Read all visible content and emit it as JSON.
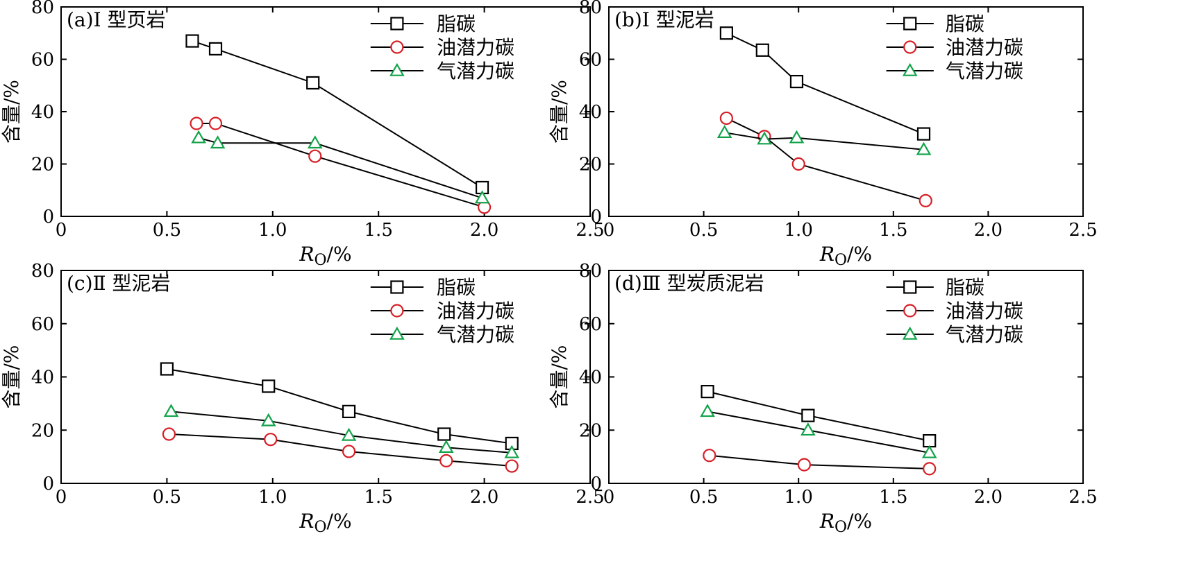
{
  "chart_data": [
    {
      "type": "line",
      "title": "(a)Ⅰ 型页岩",
      "xlabel_main": "R",
      "xlabel_sub": "O",
      "xlabel_unit": "/%",
      "ylabel": "含量/%",
      "xlim": [
        0,
        2.5
      ],
      "ylim": [
        0,
        80
      ],
      "xticks": [
        "0",
        "0.5",
        "1.0",
        "1.5",
        "2.0",
        "2.5"
      ],
      "yticks": [
        "0",
        "20",
        "40",
        "60",
        "80"
      ],
      "legend_position": "top-right",
      "series": [
        {
          "name": "脂碳",
          "marker": "square",
          "x": [
            0.62,
            0.73,
            1.19,
            1.99
          ],
          "y": [
            67,
            64,
            51,
            11
          ]
        },
        {
          "name": "油潜力碳",
          "marker": "circle",
          "x": [
            0.64,
            0.73,
            1.2,
            2.0
          ],
          "y": [
            35.5,
            35.5,
            23,
            3.5
          ]
        },
        {
          "name": "气潜力碳",
          "marker": "triangle",
          "x": [
            0.65,
            0.74,
            1.2,
            1.99
          ],
          "y": [
            30,
            28,
            28,
            7
          ]
        }
      ]
    },
    {
      "type": "line",
      "title": "(b)Ⅰ 型泥岩",
      "xlabel_main": "R",
      "xlabel_sub": "O",
      "xlabel_unit": "/%",
      "ylabel": "含量/%",
      "xlim": [
        0,
        2.5
      ],
      "ylim": [
        0,
        80
      ],
      "xticks": [
        "0",
        "0.5",
        "1.0",
        "1.5",
        "2.0",
        "2.5"
      ],
      "yticks": [
        "0",
        "20",
        "40",
        "60",
        "80"
      ],
      "legend_position": "top-right",
      "series": [
        {
          "name": "脂碳",
          "marker": "square",
          "x": [
            0.62,
            0.81,
            0.99,
            1.66
          ],
          "y": [
            70,
            63.5,
            51.5,
            31.5
          ]
        },
        {
          "name": "油潜力碳",
          "marker": "circle",
          "x": [
            0.62,
            0.82,
            1.0,
            1.67
          ],
          "y": [
            37.5,
            30.5,
            20,
            6
          ]
        },
        {
          "name": "气潜力碳",
          "marker": "triangle",
          "x": [
            0.61,
            0.82,
            0.99,
            1.66
          ],
          "y": [
            32,
            29.5,
            30,
            25.5
          ]
        }
      ]
    },
    {
      "type": "line",
      "title": "(c)Ⅱ 型泥岩",
      "xlabel_main": "R",
      "xlabel_sub": "O",
      "xlabel_unit": "/%",
      "ylabel": "含量/%",
      "xlim": [
        0,
        2.5
      ],
      "ylim": [
        0,
        80
      ],
      "xticks": [
        "0",
        "0.5",
        "1.0",
        "1.5",
        "2.0",
        "2.5"
      ],
      "yticks": [
        "0",
        "20",
        "40",
        "60",
        "80"
      ],
      "legend_position": "top-right",
      "series": [
        {
          "name": "脂碳",
          "marker": "square",
          "x": [
            0.5,
            0.98,
            1.36,
            1.81,
            2.13
          ],
          "y": [
            43,
            36.5,
            27,
            18.5,
            15
          ]
        },
        {
          "name": "油潜力碳",
          "marker": "circle",
          "x": [
            0.51,
            0.99,
            1.36,
            1.82,
            2.13
          ],
          "y": [
            18.5,
            16.5,
            12,
            8.5,
            6.5
          ]
        },
        {
          "name": "气潜力碳",
          "marker": "triangle",
          "x": [
            0.52,
            0.98,
            1.36,
            1.82,
            2.13
          ],
          "y": [
            27,
            23.5,
            18,
            13.5,
            11.5
          ]
        }
      ]
    },
    {
      "type": "line",
      "title": "(d)Ⅲ 型炭质泥岩",
      "xlabel_main": "R",
      "xlabel_sub": "O",
      "xlabel_unit": "/%",
      "ylabel": "含量/%",
      "xlim": [
        0,
        2.5
      ],
      "ylim": [
        0,
        80
      ],
      "xticks": [
        "0",
        "0.5",
        "1.0",
        "1.5",
        "2.0",
        "2.5"
      ],
      "yticks": [
        "0",
        "20",
        "40",
        "60",
        "80"
      ],
      "legend_position": "top-right",
      "series": [
        {
          "name": "脂碳",
          "marker": "square",
          "x": [
            0.52,
            1.05,
            1.69
          ],
          "y": [
            34.5,
            25.5,
            16
          ]
        },
        {
          "name": "油潜力碳",
          "marker": "circle",
          "x": [
            0.53,
            1.03,
            1.69
          ],
          "y": [
            10.5,
            7,
            5.5
          ]
        },
        {
          "name": "气潜力碳",
          "marker": "triangle",
          "x": [
            0.52,
            1.05,
            1.69
          ],
          "y": [
            27,
            20,
            11.5
          ]
        }
      ]
    }
  ],
  "styles": {
    "line_color": "#000000",
    "square_color": "#000000",
    "circle_color": "#d61f26",
    "triangle_color": "#12a34a"
  }
}
